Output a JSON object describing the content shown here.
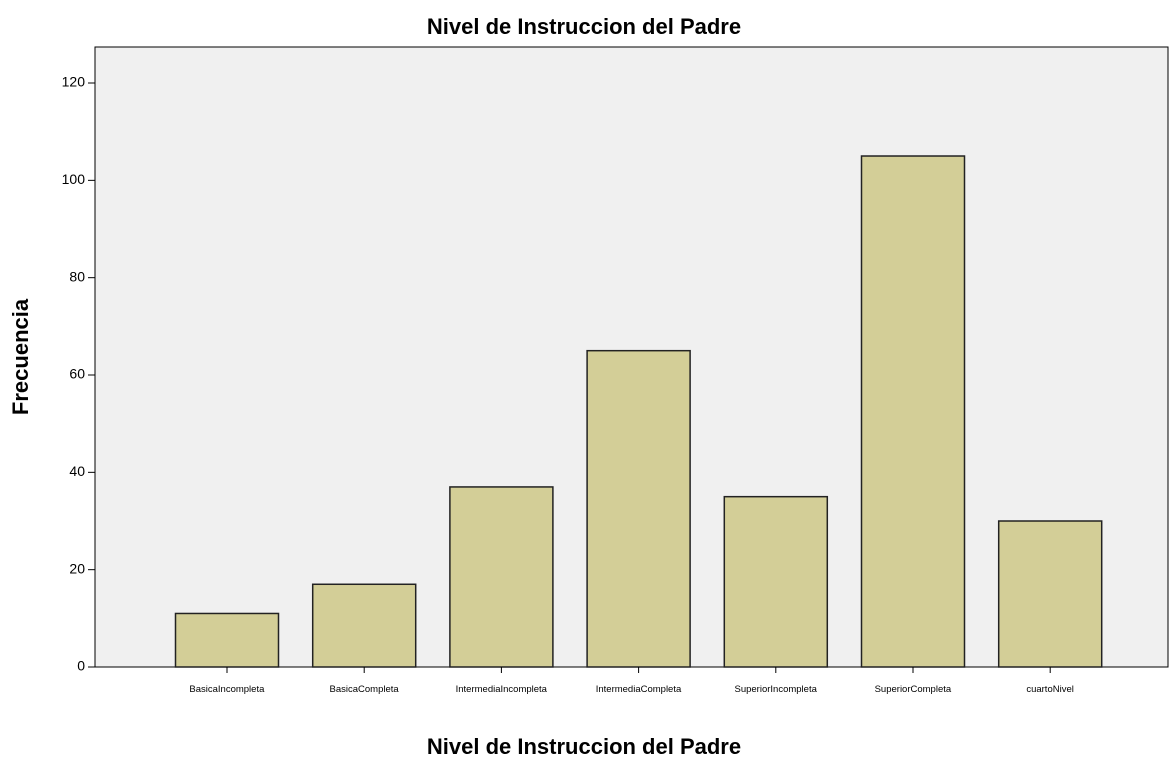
{
  "chart_data": {
    "type": "bar",
    "title": "Nivel de Instruccion del Padre",
    "x_label": "Nivel de Instruccion del Padre",
    "y_label": "Frecuencia",
    "categories": [
      "BasicaIncompleta",
      "BasicaCompleta",
      "IntermediaIncompleta",
      "IntermediaCompleta",
      "SuperiorIncompleta",
      "SuperiorCompleta",
      "cuartoNivel"
    ],
    "values": [
      11,
      17,
      37,
      65,
      35,
      105,
      30
    ],
    "color": "#d3ce97",
    "ylim": [
      0,
      127.4
    ],
    "yticks": [
      0,
      20,
      40,
      60,
      80,
      100,
      120
    ],
    "grid": false
  }
}
